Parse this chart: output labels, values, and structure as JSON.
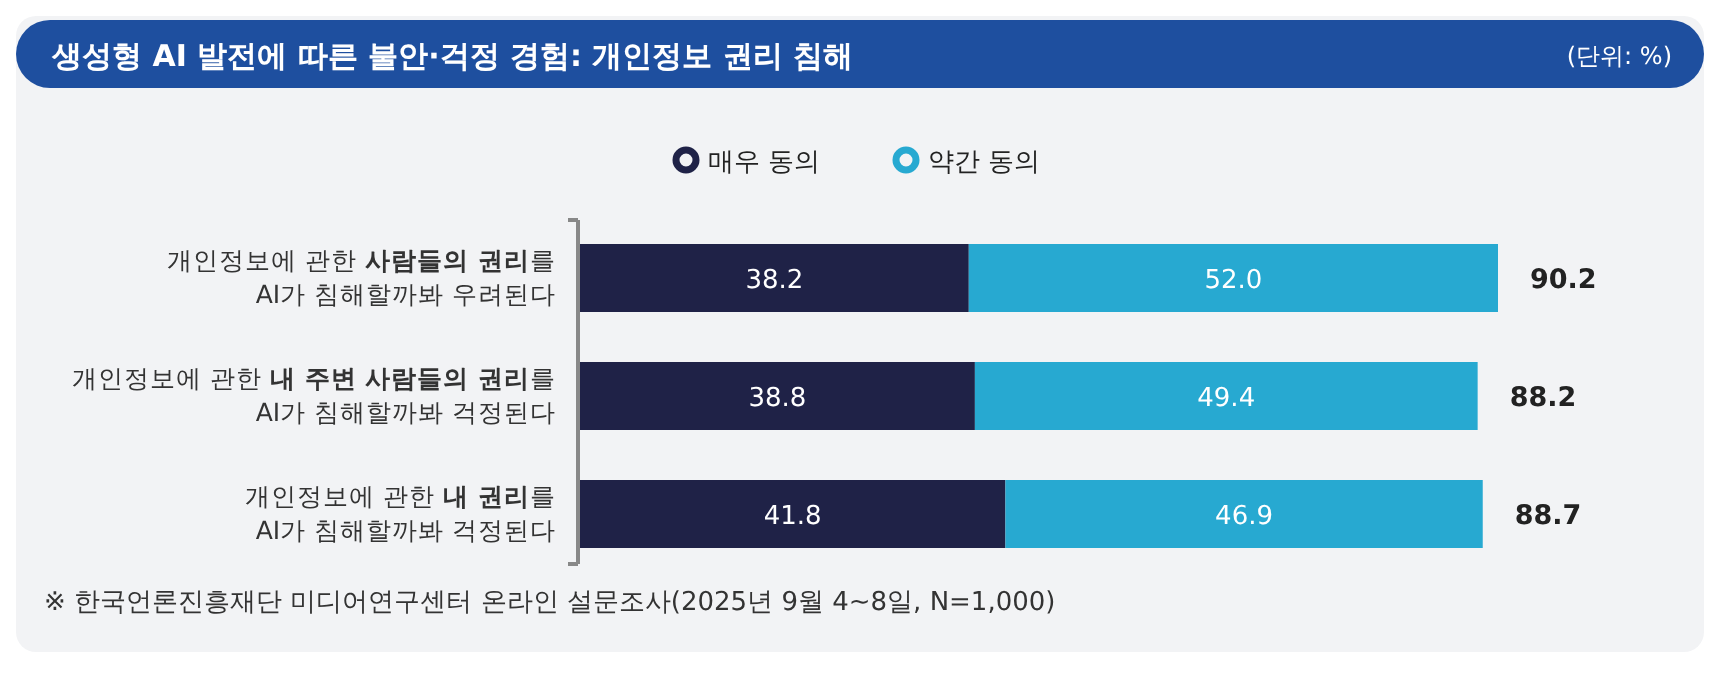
{
  "chart_data": {
    "type": "bar",
    "orientation": "horizontal",
    "stacked": true,
    "title": "생성형 AI 발전에 따른 불안·걱정 경험: 개인정보 권리 침해",
    "subtitle": "(단위: %)",
    "categories": [
      "개인정보에 관한 **사람들의 권리**를\nAI가 침해할까봐 우려된다",
      "개인정보에 관한 **내 주변 사람들의 권리**를\nAI가 침해할까봐 걱정된다",
      "개인정보에 관한 **내 권리**를\nAI가 침해할까봐 걱정된다"
    ],
    "series": [
      {
        "name": "매우 동의",
        "color": "#1f2247",
        "values": [
          38.2,
          38.8,
          41.8
        ],
        "value_labels": [
          "38.2",
          "38.8",
          "41.8"
        ]
      },
      {
        "name": "약간 동의",
        "color": "#27a9d1",
        "values": [
          52.0,
          49.4,
          46.9
        ],
        "value_labels": [
          "52.0",
          "49.4",
          "46.9"
        ]
      }
    ],
    "totals": [
      "90.2",
      "88.2",
      "88.7"
    ],
    "legend": "top",
    "annotations": [
      "※ 한국언론진흥재단 미디어연구센터 온라인 설문조사(2025년 9월 4~8일, N=1,000)"
    ]
  }
}
